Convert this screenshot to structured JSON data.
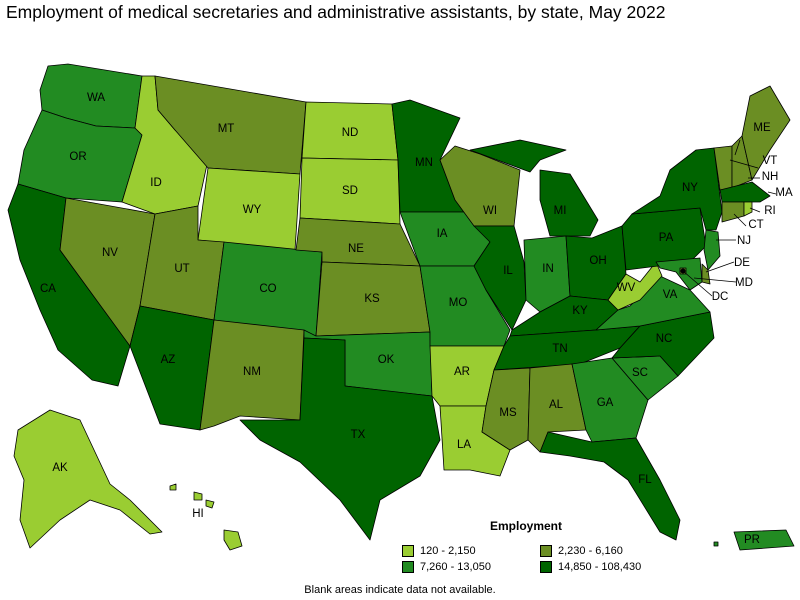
{
  "title": "Employment of medical secretaries and administrative assistants, by state, May 2022",
  "legend": {
    "title": "Employment",
    "bins": [
      {
        "label": "120 - 2,150",
        "color": "#9acd32"
      },
      {
        "label": "2,230 - 6,160",
        "color": "#6b8e23"
      },
      {
        "label": "7,260 - 13,050",
        "color": "#228b22"
      },
      {
        "label": "14,850 - 108,430",
        "color": "#006400"
      }
    ]
  },
  "footnote": "Blank areas indicate data not available.",
  "states": {
    "WA": {
      "label": "WA",
      "bin": 2
    },
    "OR": {
      "label": "OR",
      "bin": 2
    },
    "CA": {
      "label": "CA",
      "bin": 3
    },
    "NV": {
      "label": "NV",
      "bin": 1
    },
    "ID": {
      "label": "ID",
      "bin": 0
    },
    "MT": {
      "label": "MT",
      "bin": 1
    },
    "WY": {
      "label": "WY",
      "bin": 0
    },
    "UT": {
      "label": "UT",
      "bin": 1
    },
    "AZ": {
      "label": "AZ",
      "bin": 3
    },
    "CO": {
      "label": "CO",
      "bin": 2
    },
    "NM": {
      "label": "NM",
      "bin": 1
    },
    "ND": {
      "label": "ND",
      "bin": 0
    },
    "SD": {
      "label": "SD",
      "bin": 0
    },
    "NE": {
      "label": "NE",
      "bin": 1
    },
    "KS": {
      "label": "KS",
      "bin": 1
    },
    "OK": {
      "label": "OK",
      "bin": 2
    },
    "TX": {
      "label": "TX",
      "bin": 3
    },
    "MN": {
      "label": "MN",
      "bin": 3
    },
    "IA": {
      "label": "IA",
      "bin": 2
    },
    "MO": {
      "label": "MO",
      "bin": 2
    },
    "AR": {
      "label": "AR",
      "bin": 0
    },
    "LA": {
      "label": "LA",
      "bin": 0
    },
    "WI": {
      "label": "WI",
      "bin": 1
    },
    "IL": {
      "label": "IL",
      "bin": 3
    },
    "MI": {
      "label": "MI",
      "bin": 3
    },
    "IN": {
      "label": "IN",
      "bin": 2
    },
    "OH": {
      "label": "OH",
      "bin": 3
    },
    "KY": {
      "label": "KY",
      "bin": 3
    },
    "TN": {
      "label": "TN",
      "bin": 3
    },
    "MS": {
      "label": "MS",
      "bin": 1
    },
    "AL": {
      "label": "AL",
      "bin": 1
    },
    "GA": {
      "label": "GA",
      "bin": 2
    },
    "FL": {
      "label": "FL",
      "bin": 3
    },
    "SC": {
      "label": "SC",
      "bin": 2
    },
    "NC": {
      "label": "NC",
      "bin": 3
    },
    "VA": {
      "label": "VA",
      "bin": 2
    },
    "WV": {
      "label": "WV",
      "bin": 0
    },
    "PA": {
      "label": "PA",
      "bin": 3
    },
    "NY": {
      "label": "NY",
      "bin": 3
    },
    "VT": {
      "label": "VT",
      "bin": 1
    },
    "NH": {
      "label": "NH",
      "bin": 1
    },
    "ME": {
      "label": "ME",
      "bin": 1
    },
    "MA": {
      "label": "MA",
      "bin": 3
    },
    "RI": {
      "label": "RI",
      "bin": 0
    },
    "CT": {
      "label": "CT",
      "bin": 1
    },
    "NJ": {
      "label": "NJ",
      "bin": 2
    },
    "DE": {
      "label": "DE",
      "bin": 1
    },
    "MD": {
      "label": "MD",
      "bin": 2
    },
    "DC": {
      "label": "DC",
      "bin": 1
    },
    "AK": {
      "label": "AK",
      "bin": 0
    },
    "HI": {
      "label": "HI",
      "bin": 0
    },
    "PR": {
      "label": "PR",
      "bin": 2
    }
  }
}
